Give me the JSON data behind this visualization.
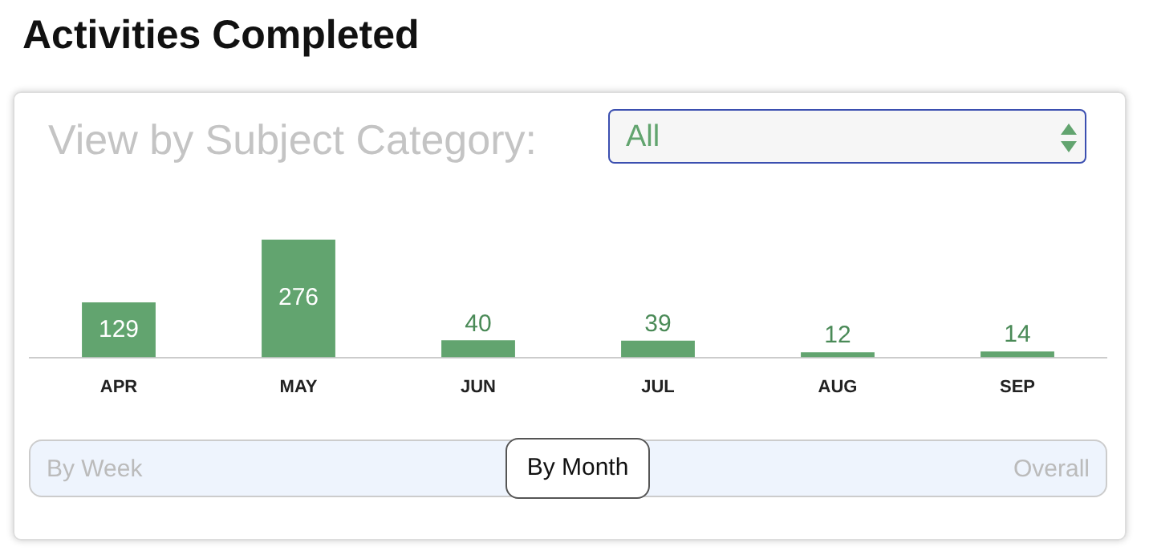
{
  "chart_data": {
    "type": "bar",
    "title": "Activities Completed",
    "categories": [
      "APR",
      "MAY",
      "JUN",
      "JUL",
      "AUG",
      "SEP"
    ],
    "values": [
      129,
      276,
      40,
      39,
      12,
      14
    ],
    "color": "#62a46f",
    "tick_labels": "x",
    "data_labels": true,
    "grid": false,
    "legend": false,
    "annotations": [
      "View by Subject Category:",
      "All",
      "By Week",
      "By Month",
      "Overall"
    ]
  }
}
